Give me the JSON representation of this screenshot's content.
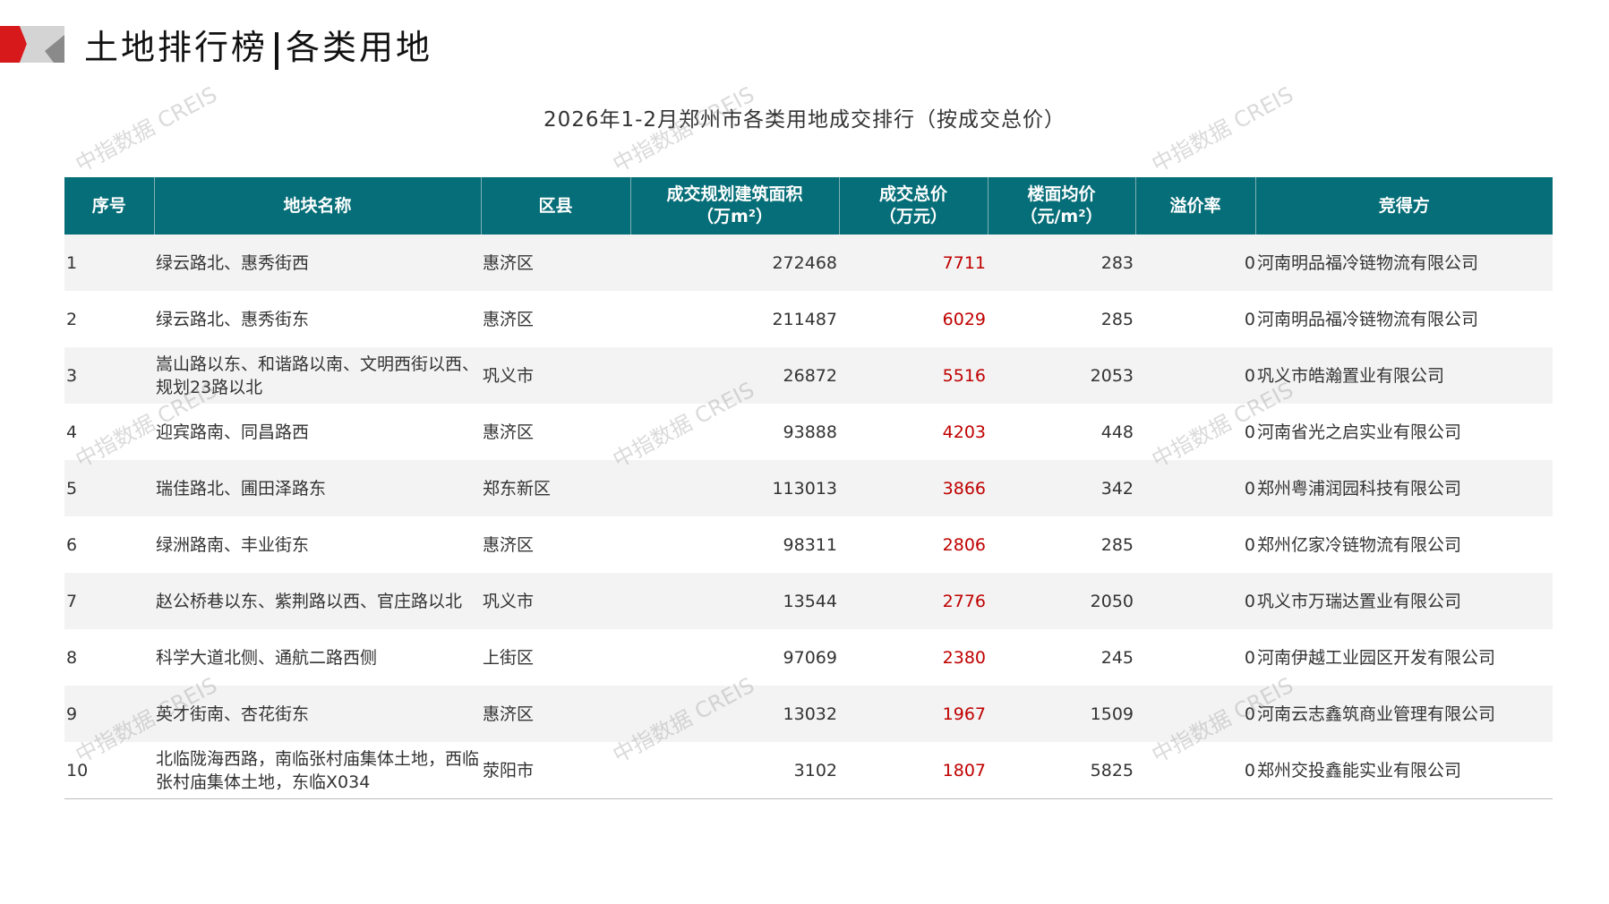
{
  "header": {
    "title_left": "土地排行榜",
    "title_right": "各类用地"
  },
  "subtitle": "2026年1-2月郑州市各类用地成交排行（按成交总价）",
  "watermark": "中指数据 CREIS",
  "colors": {
    "header_bg": "#066e78",
    "price_red": "#c00000",
    "logo_red": "#d7191c",
    "logo_gray": "#aaaaaa"
  },
  "table": {
    "columns": [
      "序号",
      "地块名称",
      "区县",
      "成交规划建筑面积\n（万m²）",
      "成交总价\n（万元）",
      "楼面均价\n（元/m²）",
      "溢价率",
      "竞得方"
    ],
    "rows": [
      [
        "1",
        "绿云路北、惠秀街西",
        "惠济区",
        "272468",
        "7711",
        "283",
        "0",
        "河南明品福冷链物流有限公司"
      ],
      [
        "2",
        "绿云路北、惠秀街东",
        "惠济区",
        "211487",
        "6029",
        "285",
        "0",
        "河南明品福冷链物流有限公司"
      ],
      [
        "3",
        "嵩山路以东、和谐路以南、文明西街以西、规划23路以北",
        "巩义市",
        "26872",
        "5516",
        "2053",
        "0",
        "巩义市皓瀚置业有限公司"
      ],
      [
        "4",
        "迎宾路南、同昌路西",
        "惠济区",
        "93888",
        "4203",
        "448",
        "0",
        "河南省光之启实业有限公司"
      ],
      [
        "5",
        "瑞佳路北、圃田泽路东",
        "郑东新区",
        "113013",
        "3866",
        "342",
        "0",
        "郑州粤浦润园科技有限公司"
      ],
      [
        "6",
        "绿洲路南、丰业街东",
        "惠济区",
        "98311",
        "2806",
        "285",
        "0",
        "郑州亿家冷链物流有限公司"
      ],
      [
        "7",
        "赵公桥巷以东、紫荆路以西、官庄路以北",
        "巩义市",
        "13544",
        "2776",
        "2050",
        "0",
        "巩义市万瑞达置业有限公司"
      ],
      [
        "8",
        "科学大道北侧、通航二路西侧",
        "上街区",
        "97069",
        "2380",
        "245",
        "0",
        "河南伊越工业园区开发有限公司"
      ],
      [
        "9",
        "英才街南、杏花街东",
        "惠济区",
        "13032",
        "1967",
        "1509",
        "0",
        "河南云志鑫筑商业管理有限公司"
      ],
      [
        "10",
        "北临陇海西路，南临张村庙集体土地，西临张村庙集体土地，东临X034",
        "荥阳市",
        "3102",
        "1807",
        "5825",
        "0",
        "郑州交投鑫能实业有限公司"
      ]
    ]
  }
}
